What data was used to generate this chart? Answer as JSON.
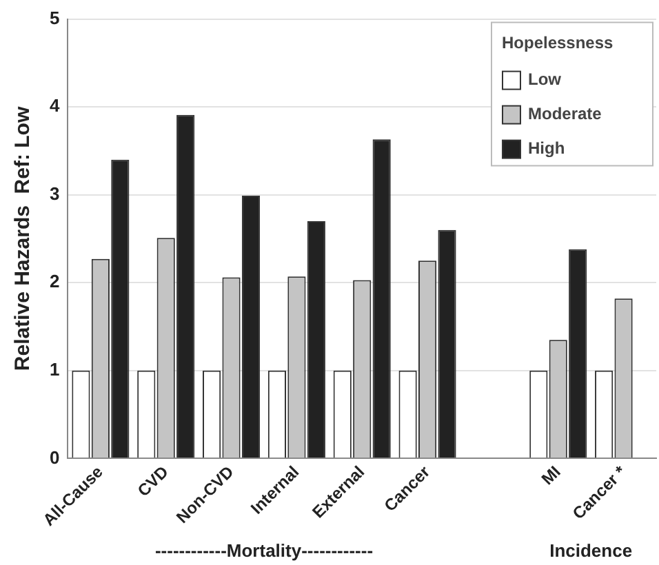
{
  "chart_data": {
    "type": "bar",
    "ylabel": "Relative Hazards  Ref: Low",
    "legend_title": "Hopelessness",
    "legend": "top right",
    "grid": "y",
    "categories": [
      "All-Cause",
      "CVD",
      "Non-CVD",
      "Internal",
      "External",
      "Cancer",
      null,
      "MI",
      "Cancer *"
    ],
    "series": [
      {
        "name": "Low",
        "color": "#ffffff",
        "values": [
          1,
          1,
          1,
          1,
          1,
          1,
          null,
          1,
          1
        ]
      },
      {
        "name": "Moderate",
        "color": "#c4c4c4",
        "values": [
          2.27,
          2.51,
          2.06,
          2.07,
          2.03,
          2.25,
          null,
          1.35,
          1.82
        ]
      },
      {
        "name": "High",
        "color": "#222222",
        "values": [
          3.4,
          3.91,
          2.99,
          2.7,
          3.63,
          2.6,
          null,
          2.38,
          null
        ]
      }
    ],
    "ylim": [
      0,
      5
    ],
    "yticks": [
      0,
      1,
      2,
      3,
      4,
      5
    ],
    "annotations": [
      "------------Mortality------------",
      "Incidence"
    ]
  }
}
